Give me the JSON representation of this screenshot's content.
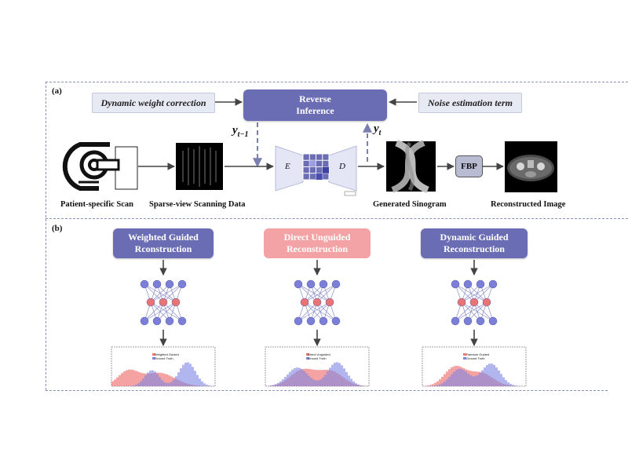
{
  "panel_a": {
    "label": "(a)",
    "dynamic_weight": "Dynamic weight correction",
    "noise_term": "Noise estimation term",
    "reverse_inference": "Reverse\nInference",
    "y_prev": "y",
    "y_prev_sub": "t−1",
    "y_curr": "y",
    "y_curr_sub": "t",
    "encoder": "E",
    "decoder": "D",
    "fbp": "FBP",
    "captions": {
      "scan": "Patient-specific Scan",
      "sparse": "Sparse-view Scanning Data",
      "sinogram": "Generated Sinogram",
      "reconstructed": "Reconstructed Image"
    }
  },
  "panel_b": {
    "label": "(b)",
    "columns": [
      {
        "title": "Weighted Guided\nRconstruction",
        "style": "purple",
        "legend": [
          "Weighted Guided",
          "Ground Truth"
        ]
      },
      {
        "title": "Direct Unguided\nReconstruction",
        "style": "pink",
        "legend": [
          "Direct Unguided",
          "Ground Truth"
        ]
      },
      {
        "title": "Dynamic Guided\nReconstruction",
        "style": "purple",
        "legend": [
          "Random Guided",
          "Ground Truth"
        ]
      }
    ]
  },
  "colors": {
    "purple": "#6a6db3",
    "pink": "#f3a3a5",
    "node_blue": "#7b7fd8",
    "node_red": "#ea7474",
    "arrow": "#444444",
    "dash_arrow": "#7a7fb0"
  }
}
